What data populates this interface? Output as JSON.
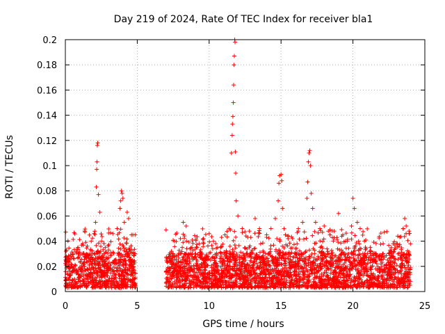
{
  "chart_data": {
    "type": "scatter",
    "title": "Day 219 of 2024, Rate Of TEC Index for receiver bla1",
    "xlabel": "GPS time / hours",
    "ylabel": "ROTI / TECUs",
    "xlim": [
      0,
      25
    ],
    "ylim": [
      0,
      0.2
    ],
    "x_ticks": [
      "0",
      "5",
      "10",
      "15",
      "20",
      "25"
    ],
    "y_ticks": [
      "0",
      "0.02",
      "0.04",
      "0.06",
      "0.08",
      "0.1",
      "0.12",
      "0.14",
      "0.16",
      "0.18",
      "0.2"
    ],
    "grid": true,
    "marker": "+",
    "colors": {
      "series": "#ff0000",
      "grid": "#a0a0a0",
      "axis": "#000000"
    },
    "series": [
      {
        "name": "ROTI",
        "segments": [
          [
            0,
            4.9
          ],
          [
            7.0,
            24.0
          ]
        ],
        "typical_range": [
          0.003,
          0.03
        ],
        "points": [
          {
            "x": 0.1,
            "y": 0.026
          },
          {
            "x": 0.2,
            "y": 0.024
          },
          {
            "x": 0.4,
            "y": 0.022
          },
          {
            "x": 0.6,
            "y": 0.02
          },
          {
            "x": 0.9,
            "y": 0.03
          },
          {
            "x": 1.2,
            "y": 0.038
          },
          {
            "x": 1.5,
            "y": 0.029
          },
          {
            "x": 1.8,
            "y": 0.04
          },
          {
            "x": 2.0,
            "y": 0.046
          },
          {
            "x": 2.1,
            "y": 0.055
          },
          {
            "x": 2.15,
            "y": 0.083
          },
          {
            "x": 2.18,
            "y": 0.097
          },
          {
            "x": 2.2,
            "y": 0.103
          },
          {
            "x": 2.22,
            "y": 0.116
          },
          {
            "x": 2.25,
            "y": 0.118
          },
          {
            "x": 2.3,
            "y": 0.077
          },
          {
            "x": 2.4,
            "y": 0.063
          },
          {
            "x": 2.7,
            "y": 0.03
          },
          {
            "x": 3.0,
            "y": 0.033
          },
          {
            "x": 3.3,
            "y": 0.046
          },
          {
            "x": 3.6,
            "y": 0.05
          },
          {
            "x": 3.8,
            "y": 0.066
          },
          {
            "x": 3.85,
            "y": 0.072
          },
          {
            "x": 3.9,
            "y": 0.08
          },
          {
            "x": 3.95,
            "y": 0.078
          },
          {
            "x": 4.0,
            "y": 0.074
          },
          {
            "x": 4.1,
            "y": 0.055
          },
          {
            "x": 4.3,
            "y": 0.063
          },
          {
            "x": 4.4,
            "y": 0.058
          },
          {
            "x": 4.6,
            "y": 0.045
          },
          {
            "x": 4.8,
            "y": 0.03
          },
          {
            "x": 7.1,
            "y": 0.026
          },
          {
            "x": 7.5,
            "y": 0.03
          },
          {
            "x": 8.0,
            "y": 0.042
          },
          {
            "x": 8.2,
            "y": 0.055
          },
          {
            "x": 8.4,
            "y": 0.052
          },
          {
            "x": 8.8,
            "y": 0.035
          },
          {
            "x": 9.3,
            "y": 0.038
          },
          {
            "x": 9.6,
            "y": 0.042
          },
          {
            "x": 10.0,
            "y": 0.046
          },
          {
            "x": 10.3,
            "y": 0.04
          },
          {
            "x": 10.8,
            "y": 0.035
          },
          {
            "x": 11.1,
            "y": 0.045
          },
          {
            "x": 11.4,
            "y": 0.05
          },
          {
            "x": 11.55,
            "y": 0.11
          },
          {
            "x": 11.6,
            "y": 0.124
          },
          {
            "x": 11.62,
            "y": 0.133
          },
          {
            "x": 11.65,
            "y": 0.139
          },
          {
            "x": 11.68,
            "y": 0.15
          },
          {
            "x": 11.7,
            "y": 0.164
          },
          {
            "x": 11.72,
            "y": 0.18
          },
          {
            "x": 11.75,
            "y": 0.187
          },
          {
            "x": 11.78,
            "y": 0.2
          },
          {
            "x": 11.8,
            "y": 0.198
          },
          {
            "x": 11.82,
            "y": 0.111
          },
          {
            "x": 11.85,
            "y": 0.094
          },
          {
            "x": 11.88,
            "y": 0.072
          },
          {
            "x": 12.0,
            "y": 0.06
          },
          {
            "x": 12.3,
            "y": 0.05
          },
          {
            "x": 12.8,
            "y": 0.048
          },
          {
            "x": 13.2,
            "y": 0.058
          },
          {
            "x": 13.5,
            "y": 0.05
          },
          {
            "x": 14.0,
            "y": 0.045
          },
          {
            "x": 14.3,
            "y": 0.05
          },
          {
            "x": 14.6,
            "y": 0.058
          },
          {
            "x": 14.8,
            "y": 0.072
          },
          {
            "x": 14.85,
            "y": 0.086
          },
          {
            "x": 14.9,
            "y": 0.092
          },
          {
            "x": 15.0,
            "y": 0.093
          },
          {
            "x": 15.05,
            "y": 0.088
          },
          {
            "x": 15.1,
            "y": 0.066
          },
          {
            "x": 15.3,
            "y": 0.045
          },
          {
            "x": 15.8,
            "y": 0.042
          },
          {
            "x": 16.2,
            "y": 0.048
          },
          {
            "x": 16.5,
            "y": 0.055
          },
          {
            "x": 16.8,
            "y": 0.074
          },
          {
            "x": 16.85,
            "y": 0.087
          },
          {
            "x": 16.9,
            "y": 0.103
          },
          {
            "x": 16.95,
            "y": 0.11
          },
          {
            "x": 17.0,
            "y": 0.112
          },
          {
            "x": 17.05,
            "y": 0.1
          },
          {
            "x": 17.1,
            "y": 0.078
          },
          {
            "x": 17.2,
            "y": 0.066
          },
          {
            "x": 17.4,
            "y": 0.055
          },
          {
            "x": 17.7,
            "y": 0.05
          },
          {
            "x": 18.0,
            "y": 0.052
          },
          {
            "x": 18.4,
            "y": 0.045
          },
          {
            "x": 18.7,
            "y": 0.048
          },
          {
            "x": 19.0,
            "y": 0.062
          },
          {
            "x": 19.3,
            "y": 0.045
          },
          {
            "x": 19.6,
            "y": 0.04
          },
          {
            "x": 19.9,
            "y": 0.052
          },
          {
            "x": 20.0,
            "y": 0.074
          },
          {
            "x": 20.1,
            "y": 0.066
          },
          {
            "x": 20.3,
            "y": 0.055
          },
          {
            "x": 20.5,
            "y": 0.05
          },
          {
            "x": 20.8,
            "y": 0.04
          },
          {
            "x": 21.2,
            "y": 0.035
          },
          {
            "x": 21.6,
            "y": 0.03
          },
          {
            "x": 22.0,
            "y": 0.028
          },
          {
            "x": 22.4,
            "y": 0.025
          },
          {
            "x": 22.8,
            "y": 0.028
          },
          {
            "x": 23.2,
            "y": 0.036
          },
          {
            "x": 23.5,
            "y": 0.05
          },
          {
            "x": 23.6,
            "y": 0.058
          },
          {
            "x": 23.7,
            "y": 0.052
          },
          {
            "x": 23.9,
            "y": 0.048
          }
        ]
      }
    ]
  }
}
